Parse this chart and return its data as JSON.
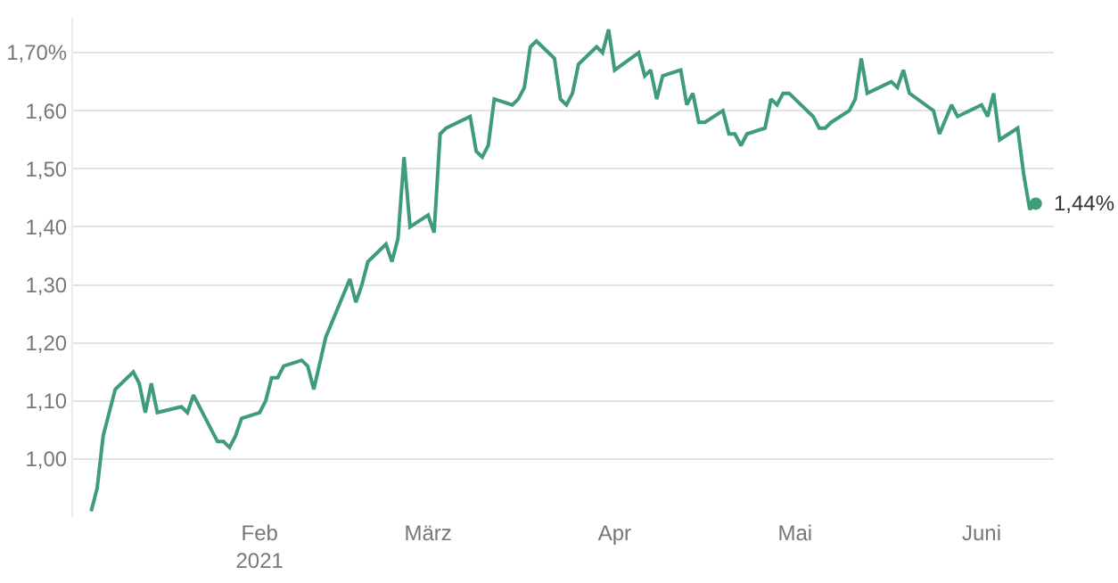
{
  "chart_data": {
    "type": "line",
    "x": [
      "2021-01-04",
      "2021-01-05",
      "2021-01-06",
      "2021-01-08",
      "2021-01-11",
      "2021-01-12",
      "2021-01-13",
      "2021-01-14",
      "2021-01-15",
      "2021-01-19",
      "2021-01-20",
      "2021-01-21",
      "2021-01-25",
      "2021-01-26",
      "2021-01-27",
      "2021-01-28",
      "2021-01-29",
      "2021-02-01",
      "2021-02-02",
      "2021-02-03",
      "2021-02-04",
      "2021-02-05",
      "2021-02-08",
      "2021-02-09",
      "2021-02-10",
      "2021-02-12",
      "2021-02-16",
      "2021-02-17",
      "2021-02-18",
      "2021-02-19",
      "2021-02-22",
      "2021-02-23",
      "2021-02-24",
      "2021-02-25",
      "2021-02-26",
      "2021-03-01",
      "2021-03-02",
      "2021-03-03",
      "2021-03-04",
      "2021-03-08",
      "2021-03-09",
      "2021-03-10",
      "2021-03-11",
      "2021-03-12",
      "2021-03-15",
      "2021-03-16",
      "2021-03-17",
      "2021-03-18",
      "2021-03-19",
      "2021-03-22",
      "2021-03-23",
      "2021-03-24",
      "2021-03-25",
      "2021-03-26",
      "2021-03-29",
      "2021-03-30",
      "2021-03-31",
      "2021-04-01",
      "2021-04-05",
      "2021-04-06",
      "2021-04-07",
      "2021-04-08",
      "2021-04-09",
      "2021-04-12",
      "2021-04-13",
      "2021-04-14",
      "2021-04-15",
      "2021-04-16",
      "2021-04-19",
      "2021-04-20",
      "2021-04-21",
      "2021-04-22",
      "2021-04-23",
      "2021-04-26",
      "2021-04-27",
      "2021-04-28",
      "2021-04-29",
      "2021-04-30",
      "2021-05-04",
      "2021-05-05",
      "2021-05-06",
      "2021-05-07",
      "2021-05-10",
      "2021-05-11",
      "2021-05-12",
      "2021-05-13",
      "2021-05-17",
      "2021-05-18",
      "2021-05-19",
      "2021-05-20",
      "2021-05-24",
      "2021-05-25",
      "2021-05-27",
      "2021-05-28",
      "2021-06-01",
      "2021-06-02",
      "2021-06-03",
      "2021-06-04",
      "2021-06-07",
      "2021-06-08",
      "2021-06-09",
      "2021-06-10"
    ],
    "series": [
      {
        "color": "#3f9b78",
        "values": [
          0.91,
          0.95,
          1.04,
          1.12,
          1.15,
          1.13,
          1.08,
          1.13,
          1.08,
          1.09,
          1.08,
          1.11,
          1.03,
          1.03,
          1.02,
          1.04,
          1.07,
          1.08,
          1.1,
          1.14,
          1.14,
          1.16,
          1.17,
          1.16,
          1.12,
          1.21,
          1.31,
          1.27,
          1.3,
          1.34,
          1.37,
          1.34,
          1.38,
          1.52,
          1.4,
          1.42,
          1.39,
          1.56,
          1.57,
          1.59,
          1.53,
          1.52,
          1.54,
          1.62,
          1.61,
          1.62,
          1.64,
          1.71,
          1.72,
          1.69,
          1.62,
          1.61,
          1.63,
          1.68,
          1.71,
          1.7,
          1.74,
          1.67,
          1.7,
          1.66,
          1.67,
          1.62,
          1.66,
          1.67,
          1.61,
          1.63,
          1.58,
          1.58,
          1.6,
          1.56,
          1.56,
          1.54,
          1.56,
          1.57,
          1.62,
          1.61,
          1.63,
          1.63,
          1.59,
          1.57,
          1.57,
          1.58,
          1.6,
          1.62,
          1.69,
          1.63,
          1.65,
          1.64,
          1.67,
          1.63,
          1.6,
          1.56,
          1.61,
          1.59,
          1.61,
          1.59,
          1.63,
          1.55,
          1.57,
          1.49,
          1.43,
          1.44
        ]
      }
    ],
    "xlim": [
      "2021-01-01",
      "2021-06-13"
    ],
    "xticks": [
      {
        "value": "2021-02-01",
        "label": "Feb\n2021"
      },
      {
        "value": "2021-03-01",
        "label": "März"
      },
      {
        "value": "2021-04-01",
        "label": "Apr"
      },
      {
        "value": "2021-05-01",
        "label": "Mai"
      },
      {
        "value": "2021-06-01",
        "label": "Juni"
      }
    ],
    "ylim": [
      0.9,
      1.76
    ],
    "yticks": [
      {
        "value": 1.0,
        "label": "1,00"
      },
      {
        "value": 1.1,
        "label": "1,10"
      },
      {
        "value": 1.2,
        "label": "1,20"
      },
      {
        "value": 1.3,
        "label": "1,30"
      },
      {
        "value": 1.4,
        "label": "1,40"
      },
      {
        "value": 1.5,
        "label": "1,50"
      },
      {
        "value": 1.6,
        "label": "1,60"
      },
      {
        "value": 1.7,
        "label": "1,70%"
      }
    ],
    "grid": "y",
    "annotations": [
      {
        "text": "1,44%",
        "x": "2021-06-10",
        "y": 1.44
      }
    ]
  }
}
